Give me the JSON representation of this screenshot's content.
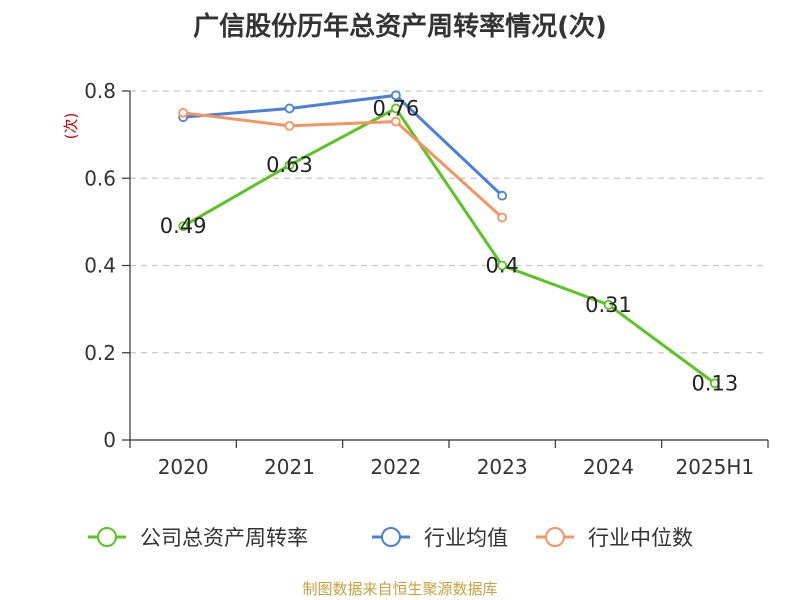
{
  "chart_data": {
    "type": "line",
    "title": "广信股份历年总资产周转率情况(次)",
    "ylabel": "(次)",
    "xlabel": "",
    "categories": [
      "2020",
      "2021",
      "2022",
      "2023",
      "2024",
      "2025H1"
    ],
    "ylim": [
      0,
      0.8
    ],
    "yticks": [
      0,
      0.2,
      0.4,
      0.6,
      0.8
    ],
    "ytick_labels": [
      "0",
      "0.2",
      "0.4",
      "0.6",
      "0.8"
    ],
    "grid": true,
    "legend_position": "bottom",
    "series": [
      {
        "name": "公司总资产周转率",
        "color": "#5cc422",
        "values": [
          0.49,
          0.63,
          0.76,
          0.4,
          0.31,
          0.13
        ],
        "labels": [
          "0.49",
          "0.63",
          "0.76",
          "0.4",
          "0.31",
          "0.13"
        ]
      },
      {
        "name": "行业均值",
        "color": "#4a7fdd",
        "values": [
          0.74,
          0.76,
          0.79,
          0.56,
          null,
          null
        ]
      },
      {
        "name": "行业中位数",
        "color": "#f59463",
        "values": [
          0.75,
          0.72,
          0.73,
          0.51,
          null,
          null
        ]
      }
    ]
  },
  "footer": {
    "source": "制图数据来自恒生聚源数据库"
  }
}
